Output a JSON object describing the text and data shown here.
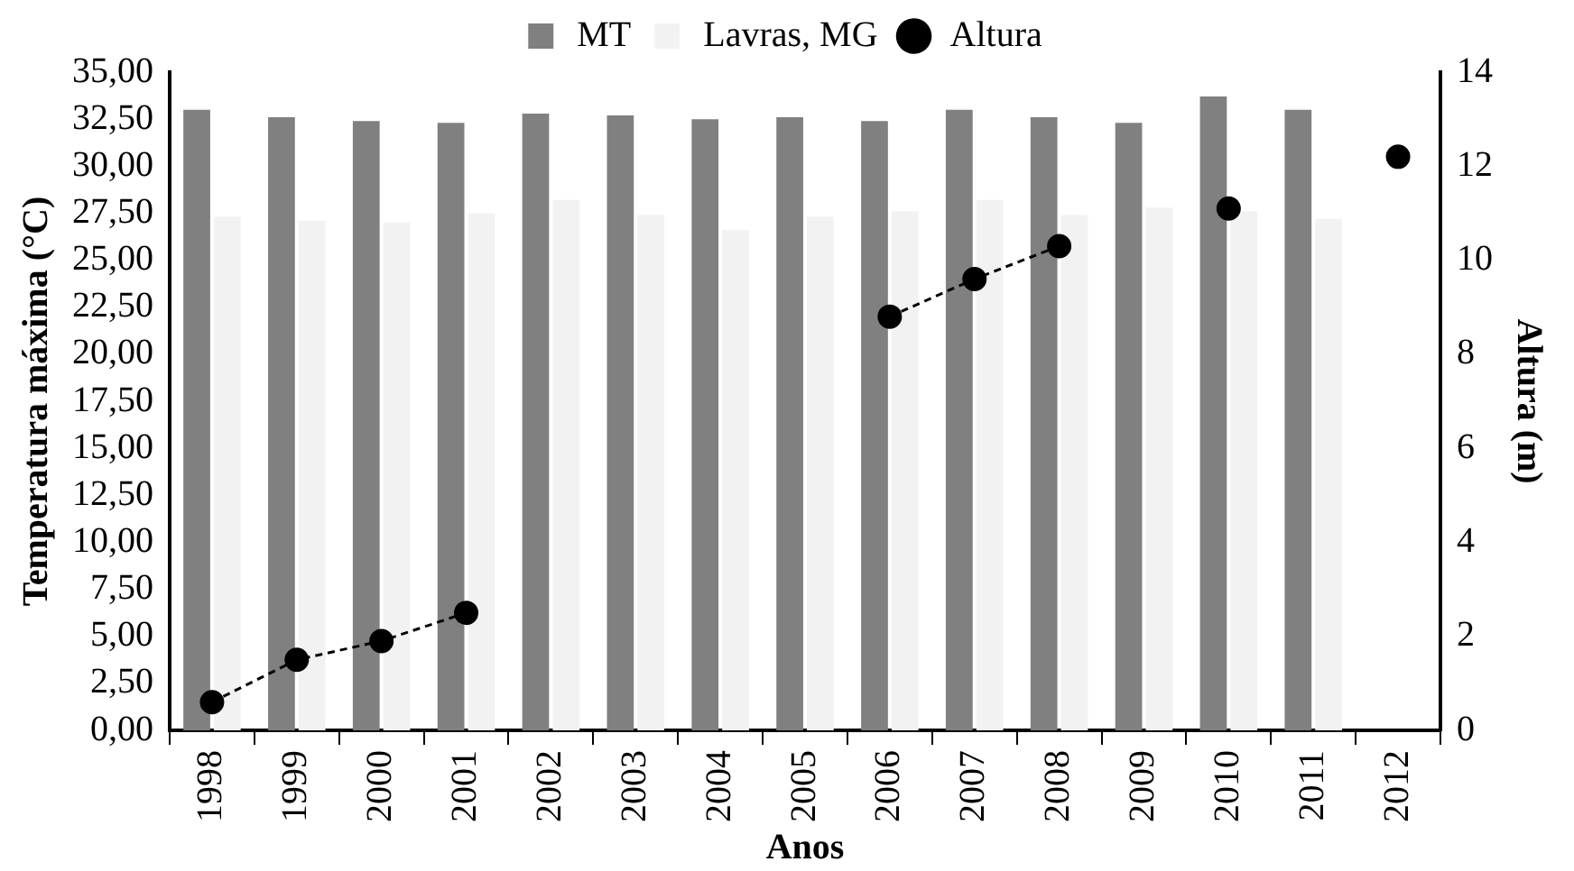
{
  "chart_data": {
    "type": "bar",
    "xlabel": "Anos",
    "ylabel": "Temperatura máxima (°C)",
    "y2label": "Altura (m)",
    "categories": [
      "1998",
      "1999",
      "2000",
      "2001",
      "2002",
      "2003",
      "2004",
      "2005",
      "2006",
      "2007",
      "2008",
      "2009",
      "2010",
      "2011",
      "2012"
    ],
    "series": [
      {
        "name": "MT",
        "color": "#808080",
        "values": [
          33.0,
          32.6,
          32.4,
          32.3,
          32.8,
          32.7,
          32.5,
          32.6,
          32.4,
          33.0,
          32.6,
          32.3,
          33.7,
          33.0,
          null
        ]
      },
      {
        "name": "Lavras, MG",
        "color": "#f2f2f2",
        "values": [
          27.3,
          27.1,
          27.0,
          27.5,
          28.2,
          27.4,
          26.6,
          27.3,
          27.6,
          28.2,
          27.4,
          27.8,
          27.6,
          27.2,
          null
        ]
      },
      {
        "name": "Altura",
        "type": "line",
        "axis": "y2",
        "color": "#000000",
        "marker": "circle",
        "line_style": "dashed",
        "values": [
          0.6,
          1.5,
          1.9,
          2.5,
          null,
          null,
          null,
          null,
          8.8,
          9.6,
          10.3,
          null,
          11.1,
          null,
          12.2
        ]
      }
    ],
    "ylim": [
      0,
      35
    ],
    "yticks": [
      {
        "value": 0,
        "label": "0,00"
      },
      {
        "value": 2.5,
        "label": "2,50"
      },
      {
        "value": 5,
        "label": "5,00"
      },
      {
        "value": 7.5,
        "label": "7,50"
      },
      {
        "value": 10,
        "label": "10,00"
      },
      {
        "value": 12.5,
        "label": "12,50"
      },
      {
        "value": 15,
        "label": "15,00"
      },
      {
        "value": 17.5,
        "label": "17,50"
      },
      {
        "value": 20,
        "label": "20,00"
      },
      {
        "value": 22.5,
        "label": "22,50"
      },
      {
        "value": 25,
        "label": "25,00"
      },
      {
        "value": 27.5,
        "label": "27,50"
      },
      {
        "value": 30,
        "label": "30,00"
      },
      {
        "value": 32.5,
        "label": "32,50"
      },
      {
        "value": 35,
        "label": "35,00"
      }
    ],
    "y2lim": [
      0,
      14
    ],
    "y2ticks": [
      0,
      2,
      4,
      6,
      8,
      10,
      12,
      14
    ],
    "grid": false,
    "legend": "top"
  }
}
